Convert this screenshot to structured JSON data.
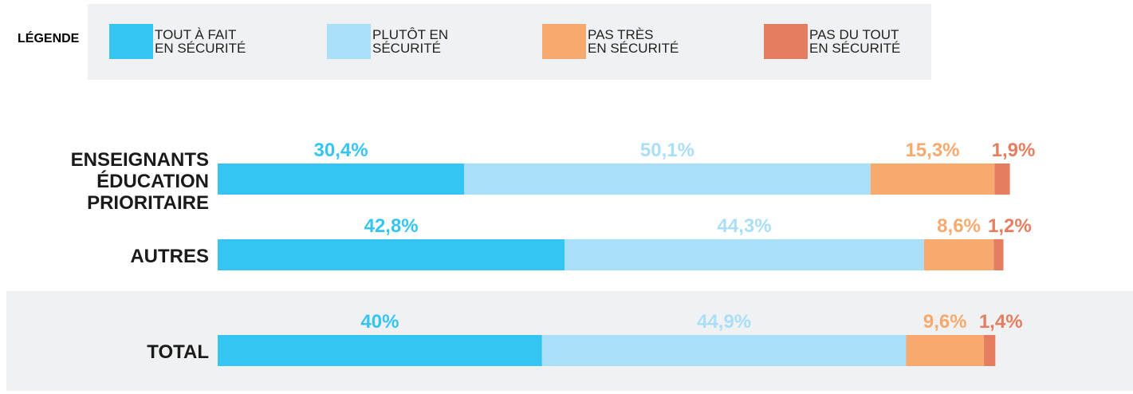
{
  "chart_data": {
    "type": "stacked-bar",
    "orientation": "horizontal",
    "legend_title": "LÉGENDE",
    "categories": [
      "ENSEIGNANTS\nÉDUCATION \nPRIORITAIRE",
      "AUTRES",
      "TOTAL"
    ],
    "xlim": [
      0,
      100
    ],
    "series": [
      {
        "name": "TOUT À FAIT\nEN SÉCURITÉ",
        "color": "#35c5f2",
        "values": [
          30.4,
          42.8,
          40
        ],
        "value_labels": [
          "30,4%",
          "42,8%",
          "40%"
        ]
      },
      {
        "name": "PLUTÔT EN\nSÉCURITÉ",
        "color": "#aadff9",
        "values": [
          50.1,
          44.3,
          44.9
        ],
        "value_labels": [
          "50,1%",
          "44,3%",
          "44,9%"
        ]
      },
      {
        "name": "PAS TRÈS\nEN SÉCURITÉ",
        "color": "#f8aa6e",
        "values": [
          15.3,
          8.6,
          9.6
        ],
        "value_labels": [
          "15,3%",
          "8,6%",
          "9,6%"
        ]
      },
      {
        "name": "PAS DU TOUT\nEN SÉCURITÉ",
        "color": "#e57e60",
        "values": [
          1.9,
          1.2,
          1.4
        ],
        "value_labels": [
          "1,9%",
          "1,2%",
          "1,4%"
        ]
      }
    ]
  }
}
